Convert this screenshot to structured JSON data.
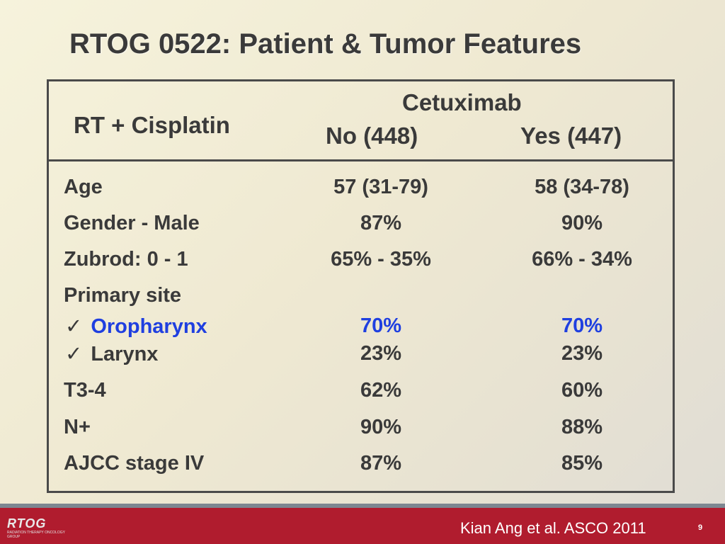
{
  "slide": {
    "title": "RTOG 0522: Patient & Tumor Features",
    "table": {
      "left_header": "RT + Cisplatin",
      "group_header": "Cetuximab",
      "col_no": "No (448)",
      "col_yes": "Yes (447)",
      "rows": [
        {
          "label": "Age",
          "no": "57 (31-79)",
          "yes": "58 (34-78)"
        },
        {
          "label": "Gender - Male",
          "no": "87%",
          "yes": "90%"
        },
        {
          "label": "Zubrod: 0 - 1",
          "no": "65% - 35%",
          "yes": "66% - 34%"
        },
        {
          "label": "Primary site",
          "no": "",
          "yes": ""
        },
        {
          "label": "Oropharynx",
          "check": "✓",
          "no": "70%",
          "yes": "70%",
          "highlight": true
        },
        {
          "label": "Larynx",
          "check": "✓",
          "no": "23%",
          "yes": "23%"
        },
        {
          "label": "T3-4",
          "no": "62%",
          "yes": "60%"
        },
        {
          "label": "N+",
          "no": "90%",
          "yes": "88%"
        },
        {
          "label": "AJCC stage IV",
          "no": "87%",
          "yes": "85%"
        }
      ]
    }
  },
  "footer": {
    "logo_text": "RTOG",
    "logo_subtext": "RADIATION THERAPY ONCOLOGY GROUP",
    "citation": "Kian Ang et al. ASCO 2011",
    "page_number": "9"
  },
  "colors": {
    "footer_bg": "#b01c2e",
    "highlight_blue": "#1f3fe0",
    "text_dark": "#3a3a3a"
  }
}
